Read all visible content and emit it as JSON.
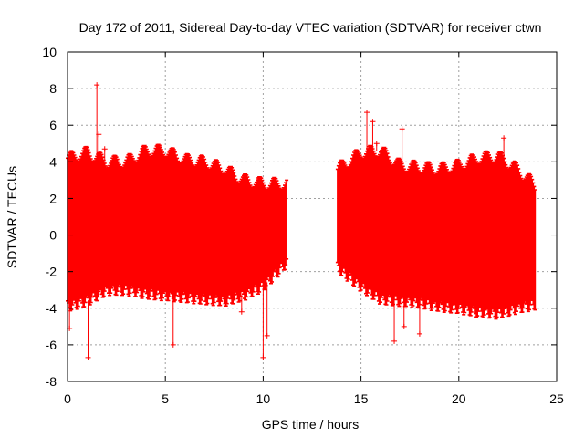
{
  "chart_data": {
    "type": "scatter",
    "title": "Day 172 of 2011, Sidereal Day-to-day VTEC variation (SDTVAR) for receiver ctwn",
    "xlabel": "GPS time / hours",
    "ylabel": "SDTVAR / TECUs",
    "xlim": [
      0,
      25
    ],
    "ylim": [
      -8,
      10
    ],
    "x_ticks": [
      "0",
      "5",
      "10",
      "15",
      "20",
      "25"
    ],
    "y_ticks": [
      "-8",
      "-6",
      "-4",
      "-2",
      "0",
      "2",
      "4",
      "6",
      "8",
      "10"
    ],
    "x_tick_values": [
      0,
      5,
      10,
      15,
      20,
      25
    ],
    "y_tick_values": [
      -8,
      -6,
      -4,
      -2,
      0,
      2,
      4,
      6,
      8,
      10
    ],
    "grid": true,
    "series_color": "#ff0000",
    "series": [
      {
        "name": "SDTVAR",
        "description": "error-bar style points, dense band",
        "envelope": [
          {
            "x": 0.0,
            "upper": 4.2,
            "lower": -3.9
          },
          {
            "x": 1.0,
            "upper": 4.5,
            "lower": -3.6
          },
          {
            "x": 2.0,
            "upper": 4.0,
            "lower": -3.0
          },
          {
            "x": 3.0,
            "upper": 4.0,
            "lower": -3.0
          },
          {
            "x": 4.0,
            "upper": 4.6,
            "lower": -3.2
          },
          {
            "x": 5.0,
            "upper": 4.6,
            "lower": -3.3
          },
          {
            "x": 6.0,
            "upper": 4.1,
            "lower": -3.4
          },
          {
            "x": 7.0,
            "upper": 4.0,
            "lower": -3.5
          },
          {
            "x": 8.0,
            "upper": 3.6,
            "lower": -3.6
          },
          {
            "x": 9.0,
            "upper": 3.0,
            "lower": -3.3
          },
          {
            "x": 10.0,
            "upper": 2.8,
            "lower": -2.8
          },
          {
            "x": 11.2,
            "upper": 2.8,
            "lower": -1.5
          },
          {
            "x": 13.8,
            "upper": 3.6,
            "lower": -1.8
          },
          {
            "x": 15.0,
            "upper": 4.5,
            "lower": -2.8
          },
          {
            "x": 16.0,
            "upper": 4.6,
            "lower": -3.5
          },
          {
            "x": 17.0,
            "upper": 3.8,
            "lower": -3.6
          },
          {
            "x": 18.0,
            "upper": 3.7,
            "lower": -3.7
          },
          {
            "x": 19.0,
            "upper": 3.6,
            "lower": -3.9
          },
          {
            "x": 20.0,
            "upper": 3.8,
            "lower": -4.0
          },
          {
            "x": 21.0,
            "upper": 4.2,
            "lower": -4.2
          },
          {
            "x": 22.0,
            "upper": 4.3,
            "lower": -4.3
          },
          {
            "x": 23.0,
            "upper": 3.6,
            "lower": -4.0
          },
          {
            "x": 23.9,
            "upper": 2.7,
            "lower": -3.8
          }
        ],
        "points": [
          {
            "x": 0.1,
            "y": -5.1
          },
          {
            "x": 1.05,
            "y": -6.7
          },
          {
            "x": 1.5,
            "y": 8.2
          },
          {
            "x": 1.6,
            "y": 5.5
          },
          {
            "x": 1.9,
            "y": 4.7
          },
          {
            "x": 5.4,
            "y": -6.0
          },
          {
            "x": 8.9,
            "y": -4.2
          },
          {
            "x": 10.0,
            "y": -6.7
          },
          {
            "x": 10.2,
            "y": -5.5
          },
          {
            "x": 15.3,
            "y": 6.7
          },
          {
            "x": 15.6,
            "y": 6.2
          },
          {
            "x": 15.8,
            "y": 5.0
          },
          {
            "x": 16.7,
            "y": -5.8
          },
          {
            "x": 17.1,
            "y": 5.8
          },
          {
            "x": 17.2,
            "y": -5.0
          },
          {
            "x": 18.0,
            "y": -5.4
          },
          {
            "x": 22.3,
            "y": 5.3
          },
          {
            "x": 23.2,
            "y": -3.1
          }
        ]
      }
    ]
  }
}
